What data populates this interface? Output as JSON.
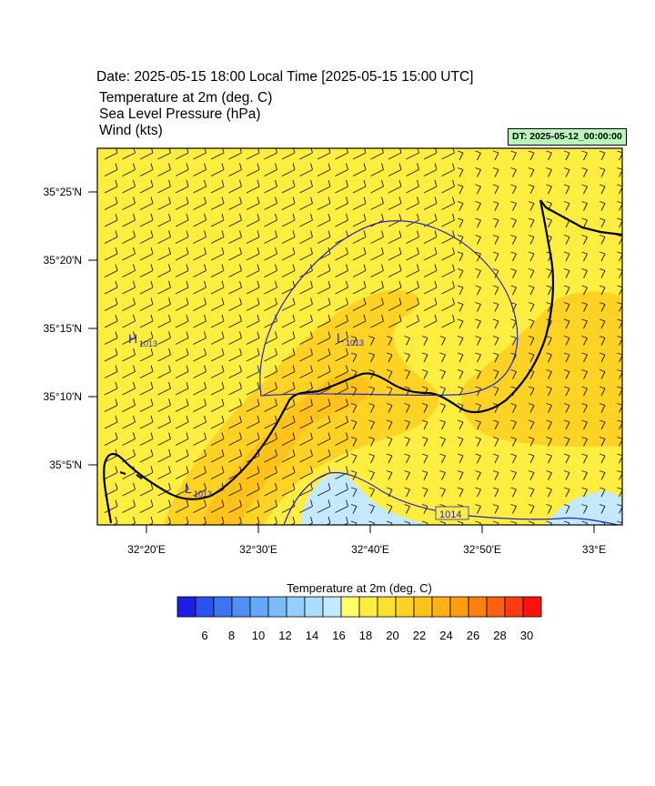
{
  "header": {
    "title": "Date: 2025-05-15  18:00 Local Time [2025-05-15  15:00 UTC]",
    "fields": [
      "Temperature at 2m   (deg. C)",
      "Sea Level Pressure   (hPa)",
      "Wind   (kts)"
    ],
    "init_time": "DT: 2025-05-12_00:00:00"
  },
  "map": {
    "lat_labels": [
      "35°25'N",
      "35°20'N",
      "35°15'N",
      "35°10'N",
      "35°5'N"
    ],
    "lon_labels": [
      "32°20'E",
      "32°30'E",
      "32°40'E",
      "32°50'E",
      "33°E"
    ],
    "pressure_markers": [
      {
        "type": "H",
        "value": "1013"
      },
      {
        "type": "L",
        "value": "1013"
      },
      {
        "type": "L",
        "value": "1013"
      }
    ],
    "contour_label": "1014"
  },
  "colorbar": {
    "title": "Temperature at 2m  (deg. C)",
    "tick_labels": [
      "6",
      "8",
      "10",
      "12",
      "14",
      "16",
      "18",
      "20",
      "22",
      "24",
      "26",
      "28",
      "30"
    ],
    "colors": [
      "#1e1ee6",
      "#2a52ee",
      "#3c74f2",
      "#4f90f5",
      "#64a8f7",
      "#7cbcf9",
      "#94cefb",
      "#acdcfc",
      "#c4e9fd",
      "#ffff66",
      "#ffee40",
      "#ffe030",
      "#ffd224",
      "#ffc21a",
      "#ffb014",
      "#ff9c10",
      "#ff8010",
      "#ff6010",
      "#ff3c10",
      "#ff1010"
    ]
  }
}
